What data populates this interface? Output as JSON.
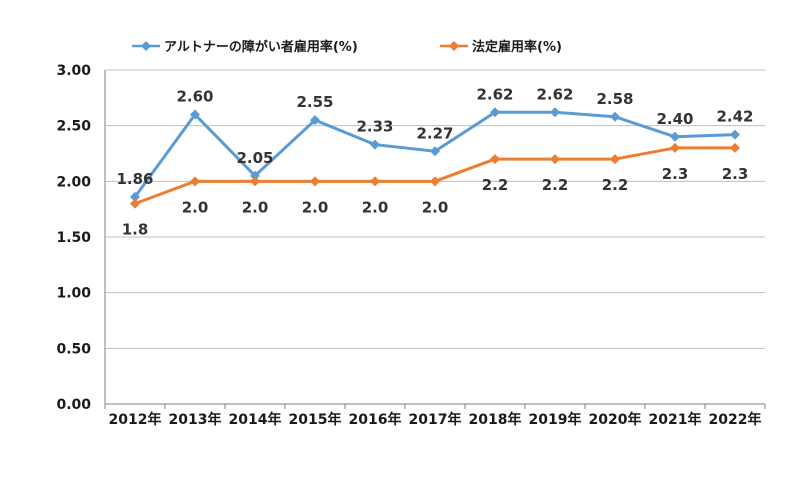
{
  "chart_data": {
    "type": "line",
    "categories": [
      "2012年",
      "2013年",
      "2014年",
      "2015年",
      "2016年",
      "2017年",
      "2018年",
      "2019年",
      "2020年",
      "2021年",
      "2022年"
    ],
    "ylim": [
      0,
      3
    ],
    "yticks": [
      "0.00",
      "0.50",
      "1.00",
      "1.50",
      "2.00",
      "2.50",
      "3.00"
    ],
    "grid": true,
    "legend_position": "top",
    "series": [
      {
        "name": "アルトナーの障がい者雇用率(%)",
        "color": "#5b9bd5",
        "values": [
          1.86,
          2.6,
          2.05,
          2.55,
          2.33,
          2.27,
          2.62,
          2.62,
          2.58,
          2.4,
          2.42
        ],
        "labels": [
          "1.86",
          "2.60",
          "2.05",
          "2.55",
          "2.33",
          "2.27",
          "2.62",
          "2.62",
          "2.58",
          "2.40",
          "2.42"
        ]
      },
      {
        "name": "法定雇用率(%)",
        "color": "#ed7d31",
        "values": [
          1.8,
          2.0,
          2.0,
          2.0,
          2.0,
          2.0,
          2.2,
          2.2,
          2.2,
          2.3,
          2.3
        ],
        "labels": [
          "1.8",
          "2.0",
          "2.0",
          "2.0",
          "2.0",
          "2.0",
          "2.2",
          "2.2",
          "2.2",
          "2.3",
          "2.3"
        ]
      }
    ]
  }
}
